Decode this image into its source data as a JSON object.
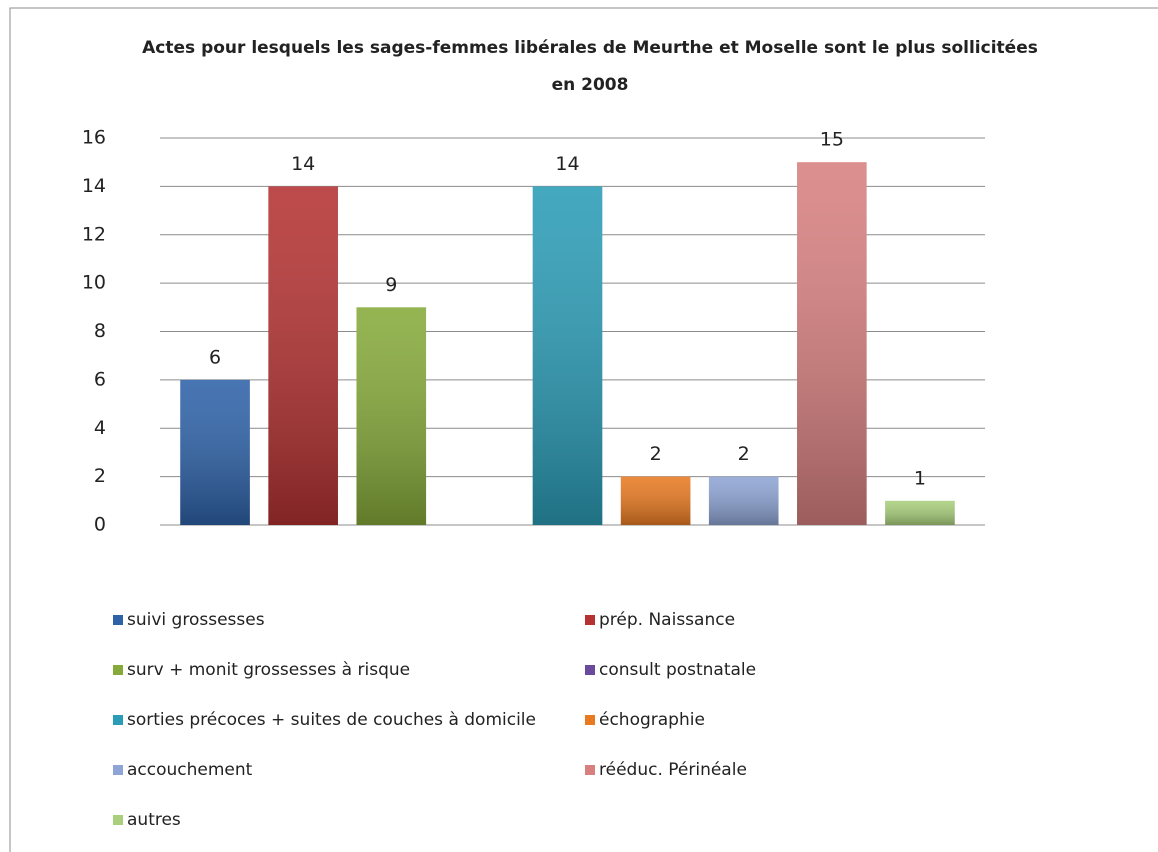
{
  "chart_data": {
    "type": "bar",
    "title_lines": [
      "Actes pour lesquels les sages-femmes libérales  de Meurthe et Moselle sont le plus sollicitées",
      "en 2008"
    ],
    "series": [
      {
        "name": "suivi grossesses",
        "color": "#2e62a8",
        "values": [
          6
        ]
      },
      {
        "name": "prép. Naissance",
        "color": "#b43232",
        "values": [
          14
        ]
      },
      {
        "name": "surv + monit grossesses à risque",
        "color": "#86aa3a",
        "values": [
          9
        ]
      },
      {
        "name": "consult postnatale",
        "color": "#6a4a9c",
        "values": [
          null
        ]
      },
      {
        "name": "sorties précoces + suites de couches à domicile",
        "color": "#2b9cb6",
        "values": [
          14
        ]
      },
      {
        "name": "échographie",
        "color": "#e87a22",
        "values": [
          2
        ]
      },
      {
        "name": "accouchement",
        "color": "#8ea4d4",
        "values": [
          2
        ]
      },
      {
        "name": "rééduc. Périnéale",
        "color": "#d88080",
        "values": [
          15
        ]
      },
      {
        "name": "autres",
        "color": "#a9cf7c",
        "values": [
          1
        ]
      }
    ],
    "ylim": [
      0,
      16
    ],
    "yticks": [
      0,
      2,
      4,
      6,
      8,
      10,
      12,
      14,
      16
    ],
    "grid": true,
    "legend": "bottom"
  }
}
